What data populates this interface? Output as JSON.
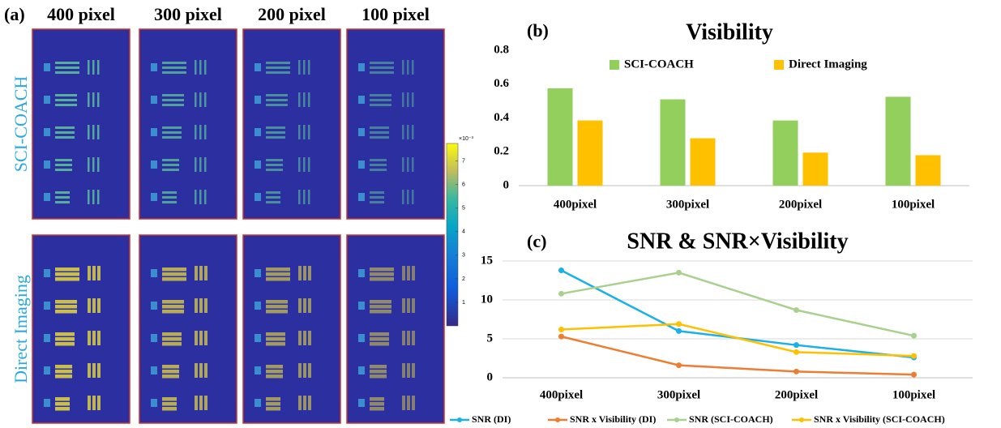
{
  "panel_a": {
    "label": "(a)",
    "columns": [
      "400 pixel",
      "300 pixel",
      "200 pixel",
      "100 pixel"
    ],
    "rows": [
      "SCI-COACH",
      "Direct Imaging"
    ],
    "colorbar": {
      "exponent": "×10⁻³",
      "lim": [
        0,
        7.75
      ],
      "ticks": [
        1,
        2,
        3,
        4,
        5,
        6,
        7
      ]
    }
  },
  "chart_data": [
    {
      "type": "bar",
      "label": "(b)",
      "title": "Visibility",
      "categories": [
        "400pixel",
        "300pixel",
        "200pixel",
        "100pixel"
      ],
      "series": [
        {
          "name": "SCI-COACH",
          "color": "#92cf5c",
          "values": [
            0.575,
            0.51,
            0.385,
            0.525
          ]
        },
        {
          "name": "Direct Imaging",
          "color": "#ffc000",
          "values": [
            0.385,
            0.28,
            0.195,
            0.18
          ]
        }
      ],
      "ylim": [
        0,
        0.8
      ],
      "yticks": [
        0,
        0.2,
        0.4,
        0.6,
        0.8
      ],
      "grid": false,
      "legend": "top"
    },
    {
      "type": "line",
      "label": "(c)",
      "title": "SNR & SNR×Visibility",
      "categories": [
        "400pixel",
        "300pixel",
        "200pixel",
        "100pixel"
      ],
      "series": [
        {
          "name": "SNR (DI)",
          "color": "#1ab0e8",
          "values": [
            13.8,
            6.0,
            4.2,
            2.6
          ]
        },
        {
          "name": "SNR x Visibility (DI)",
          "color": "#ed7d31",
          "values": [
            5.3,
            1.6,
            0.8,
            0.4
          ]
        },
        {
          "name": "SNR (SCI-COACH)",
          "color": "#a9d18e",
          "values": [
            10.8,
            13.5,
            8.7,
            5.4
          ]
        },
        {
          "name": "SNR x Visibility (SCI-COACH)",
          "color": "#ffc000",
          "values": [
            6.2,
            6.9,
            3.3,
            2.8
          ]
        }
      ],
      "ylim": [
        0,
        15
      ],
      "yticks": [
        0,
        5,
        10,
        15
      ],
      "grid": true,
      "legend": "bottom"
    }
  ]
}
